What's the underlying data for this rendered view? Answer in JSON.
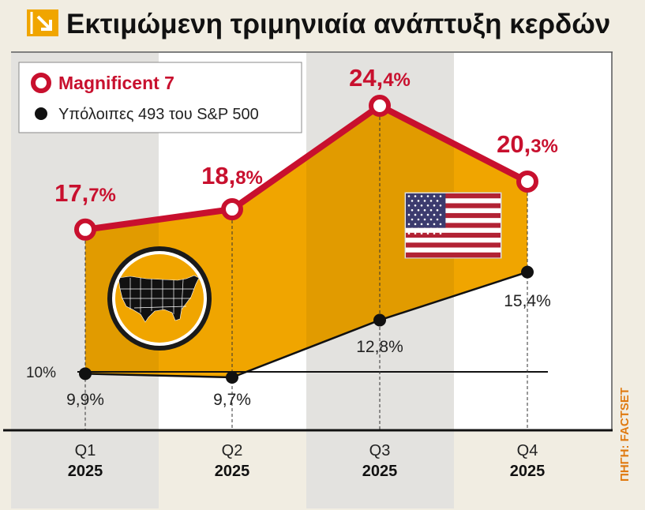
{
  "title": "Εκτιμώμενη τριμηνιαία ανάπτυξη κερδών",
  "source": "ΠΗΓΗ: FACTSET",
  "colors": {
    "accent_orange": "#f0a500",
    "series_red": "#c8102e",
    "series_black": "#111111",
    "band_shade": "#e3e2df",
    "background": "#f1ede2"
  },
  "chart_data": {
    "type": "line",
    "categories": [
      "Q1",
      "Q2",
      "Q3",
      "Q4"
    ],
    "category_sublabels": [
      "2025",
      "2025",
      "2025",
      "2025"
    ],
    "series": [
      {
        "name": "Magnificent 7",
        "values": [
          17.7,
          18.8,
          24.4,
          20.3
        ],
        "labels": [
          {
            "int": "17,",
            "dec": "7%"
          },
          {
            "int": "18,",
            "dec": "8%"
          },
          {
            "int": "24,",
            "dec": "4%"
          },
          {
            "int": "20,",
            "dec": "3%"
          }
        ]
      },
      {
        "name": "Υπόλοιπες 493 του S&P 500",
        "values": [
          9.9,
          9.7,
          12.8,
          15.4
        ],
        "labels": [
          "9,9%",
          "9,7%",
          "12,8%",
          "15,4%"
        ]
      }
    ],
    "reference_line": {
      "value": 10,
      "label": "10%"
    },
    "legend_position": "top-left",
    "fill_between_series": true,
    "alternating_column_shading": true
  }
}
